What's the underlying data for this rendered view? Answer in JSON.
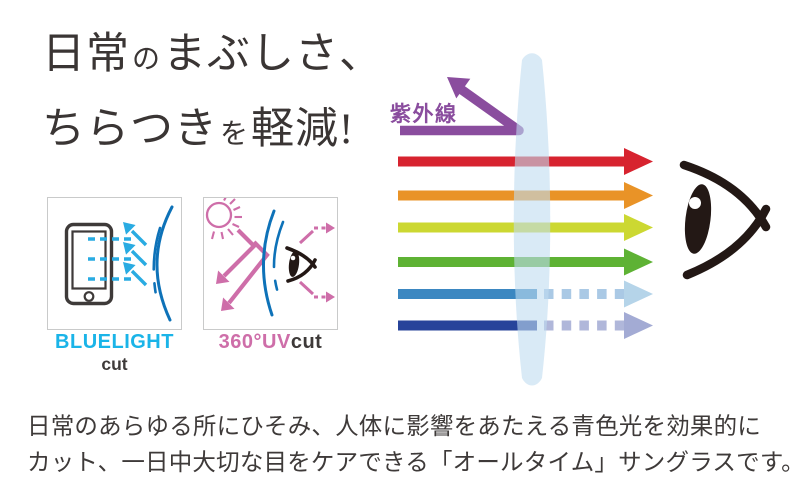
{
  "headline": {
    "line1_main1": "日常",
    "line1_particle": "の",
    "line1_main2": "まぶしさ、",
    "line2_main1": "ちらつき",
    "line2_particle": "を",
    "line2_main2": "軽減!"
  },
  "feature_badges": {
    "bluelight": {
      "title": "BLUELIGHT",
      "subtitle": "cut",
      "accent_color": "#1ab4e8"
    },
    "uv": {
      "title_accent": "360°UV",
      "title_rest": "cut",
      "accent_color": "#ce6ea9"
    }
  },
  "diagram": {
    "uv_ray": {
      "label": "紫外線",
      "color": "#8a4d9e",
      "result": "reflected-by-lens"
    },
    "rays": [
      {
        "name": "red",
        "color": "#d7232f",
        "passes_lens": true
      },
      {
        "name": "orange",
        "color": "#e99327",
        "passes_lens": true
      },
      {
        "name": "yellow-green",
        "color": "#ccd832",
        "passes_lens": true
      },
      {
        "name": "green",
        "color": "#5eb234",
        "passes_lens": true
      },
      {
        "name": "blue",
        "color": "#3b87c1",
        "passes_lens": false,
        "dash_color": "#aac9e5",
        "head_color": "#b5d4e9"
      },
      {
        "name": "navy",
        "color": "#27439a",
        "passes_lens": false,
        "dash_color": "#b0b7da",
        "head_color": "#a3abd4"
      }
    ],
    "lens_color": "#d9eaf6",
    "eye_color": "#231815",
    "arc_color": "#0e72b8"
  },
  "description": {
    "line1": "日常のあらゆる所にひそみ、人体に影響をあたえる青色光を効果的に",
    "line2": "カット、一日中大切な目をケアできる「オールタイム」サングラスです。"
  }
}
